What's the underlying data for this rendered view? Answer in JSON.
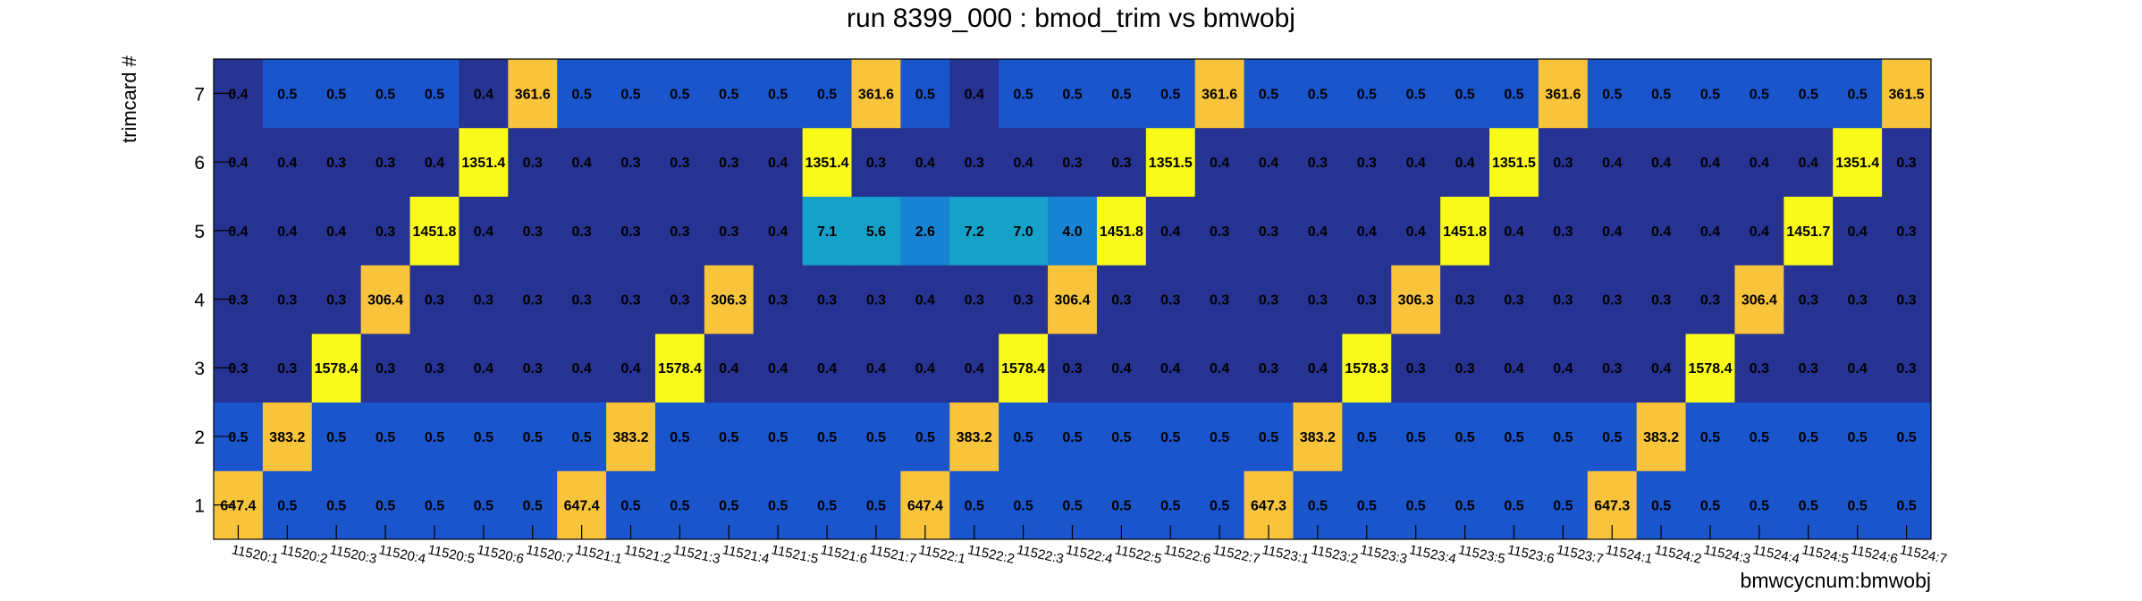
{
  "title": "run 8399_000 : bmod_trim vs bmwobj",
  "chart_data": {
    "type": "heatmap",
    "title": "run 8399_000 : bmod_trim vs bmwobj",
    "xlabel": "bmwcycnum:bmwobj",
    "ylabel": "trimcard #",
    "x_categories": [
      "11520:1",
      "11520:2",
      "11520:3",
      "11520:4",
      "11520:5",
      "11520:6",
      "11520:7",
      "11521:1",
      "11521:2",
      "11521:3",
      "11521:4",
      "11521:5",
      "11521:6",
      "11521:7",
      "11522:1",
      "11522:2",
      "11522:3",
      "11522:4",
      "11522:5",
      "11522:6",
      "11522:7",
      "11523:1",
      "11523:2",
      "11523:3",
      "11523:4",
      "11523:5",
      "11523:6",
      "11523:7",
      "11524:1",
      "11524:2",
      "11524:3",
      "11524:4",
      "11524:5",
      "11524:6",
      "11524:7"
    ],
    "y_categories": [
      "1",
      "2",
      "3",
      "4",
      "5",
      "6",
      "7"
    ],
    "rows": [
      [
        "647.4",
        "0.5",
        "0.5",
        "0.5",
        "0.5",
        "0.5",
        "0.5",
        "647.4",
        "0.5",
        "0.5",
        "0.5",
        "0.5",
        "0.5",
        "0.5",
        "647.4",
        "0.5",
        "0.5",
        "0.5",
        "0.5",
        "0.5",
        "0.5",
        "647.3",
        "0.5",
        "0.5",
        "0.5",
        "0.5",
        "0.5",
        "0.5",
        "647.3",
        "0.5",
        "0.5",
        "0.5",
        "0.5",
        "0.5",
        "0.5"
      ],
      [
        "0.5",
        "383.2",
        "0.5",
        "0.5",
        "0.5",
        "0.5",
        "0.5",
        "0.5",
        "383.2",
        "0.5",
        "0.5",
        "0.5",
        "0.5",
        "0.5",
        "0.5",
        "383.2",
        "0.5",
        "0.5",
        "0.5",
        "0.5",
        "0.5",
        "0.5",
        "383.2",
        "0.5",
        "0.5",
        "0.5",
        "0.5",
        "0.5",
        "0.5",
        "383.2",
        "0.5",
        "0.5",
        "0.5",
        "0.5",
        "0.5"
      ],
      [
        "0.3",
        "0.3",
        "1578.4",
        "0.3",
        "0.3",
        "0.4",
        "0.3",
        "0.4",
        "0.4",
        "1578.4",
        "0.4",
        "0.4",
        "0.4",
        "0.4",
        "0.4",
        "0.4",
        "1578.4",
        "0.3",
        "0.4",
        "0.4",
        "0.4",
        "0.3",
        "0.4",
        "1578.3",
        "0.3",
        "0.3",
        "0.4",
        "0.4",
        "0.3",
        "0.4",
        "1578.4",
        "0.3",
        "0.3",
        "0.4",
        "0.3"
      ],
      [
        "0.3",
        "0.3",
        "0.3",
        "306.4",
        "0.3",
        "0.3",
        "0.3",
        "0.3",
        "0.3",
        "0.3",
        "306.3",
        "0.3",
        "0.3",
        "0.3",
        "0.4",
        "0.3",
        "0.3",
        "306.4",
        "0.3",
        "0.3",
        "0.3",
        "0.3",
        "0.3",
        "0.3",
        "306.3",
        "0.3",
        "0.3",
        "0.3",
        "0.3",
        "0.3",
        "0.3",
        "306.4",
        "0.3",
        "0.3",
        "0.3"
      ],
      [
        "0.4",
        "0.4",
        "0.4",
        "0.3",
        "1451.8",
        "0.4",
        "0.3",
        "0.3",
        "0.3",
        "0.3",
        "0.3",
        "0.4",
        "7.1",
        "5.6",
        "2.6",
        "7.2",
        "7.0",
        "4.0",
        "1451.8",
        "0.4",
        "0.3",
        "0.3",
        "0.4",
        "0.4",
        "0.4",
        "1451.8",
        "0.4",
        "0.3",
        "0.4",
        "0.4",
        "0.4",
        "0.4",
        "1451.7",
        "0.4",
        "0.3"
      ],
      [
        "0.4",
        "0.4",
        "0.3",
        "0.3",
        "0.4",
        "1351.4",
        "0.3",
        "0.4",
        "0.3",
        "0.3",
        "0.3",
        "0.4",
        "1351.4",
        "0.3",
        "0.4",
        "0.3",
        "0.4",
        "0.3",
        "0.3",
        "1351.5",
        "0.4",
        "0.4",
        "0.3",
        "0.3",
        "0.4",
        "0.4",
        "1351.5",
        "0.3",
        "0.4",
        "0.4",
        "0.4",
        "0.4",
        "0.4",
        "1351.4",
        "0.3"
      ],
      [
        "0.4",
        "0.5",
        "0.5",
        "0.5",
        "0.5",
        "0.4",
        "361.6",
        "0.5",
        "0.5",
        "0.5",
        "0.5",
        "0.5",
        "0.5",
        "361.6",
        "0.5",
        "0.4",
        "0.5",
        "0.5",
        "0.5",
        "0.5",
        "361.6",
        "0.5",
        "0.5",
        "0.5",
        "0.5",
        "0.5",
        "0.5",
        "361.6",
        "0.5",
        "0.5",
        "0.5",
        "0.5",
        "0.5",
        "0.5",
        "361.5"
      ]
    ],
    "palette": {
      "low": "#263392",
      "mid": "#1a55cc",
      "cyan": "#15a1c8",
      "sky": "#1683d4",
      "orange": "#f7c43c",
      "yellow": "#f9f91a"
    }
  }
}
